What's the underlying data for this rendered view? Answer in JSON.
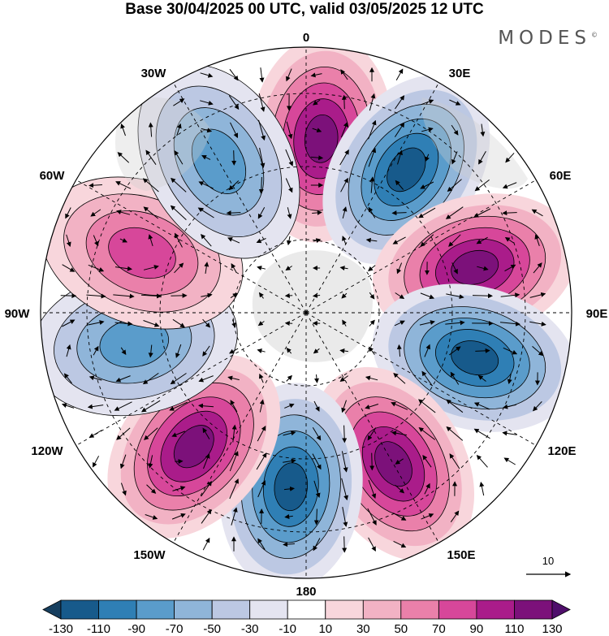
{
  "title": "Base 30/04/2025 00 UTC, valid 03/05/2025 12 UTC",
  "brand": "MODES",
  "brand_mark": "©",
  "longitude_labels": {
    "lon_0": "0",
    "lon_30E": "30E",
    "lon_60E": "60E",
    "lon_90E": "90E",
    "lon_120E": "120E",
    "lon_150E": "150E",
    "lon_180": "180",
    "lon_150W": "150W",
    "lon_120W": "120W",
    "lon_90W": "90W",
    "lon_60W": "60W",
    "lon_30W": "30W"
  },
  "vector_reference": {
    "value": "10"
  },
  "colorbar": {
    "levels": [
      -130,
      -110,
      -90,
      -70,
      -50,
      -30,
      -10,
      10,
      30,
      50,
      70,
      90,
      110,
      130
    ],
    "labels": [
      "-130",
      "-110",
      "-90",
      "-70",
      "-50",
      "-30",
      "-10",
      "10",
      "30",
      "50",
      "70",
      "90",
      "110",
      "130"
    ],
    "colors": [
      "#173f5f",
      "#175a8b",
      "#2f7fb5",
      "#5a9ccb",
      "#8fb5d9",
      "#bcc8e3",
      "#e4e4f0",
      "#ffffff",
      "#f8d6dc",
      "#f2b2c4",
      "#ea80aa",
      "#d7479a",
      "#aa1c8a",
      "#7c117a",
      "#4f0e6b"
    ]
  },
  "chart_data": {
    "type": "heatmap",
    "projection": "north-polar-stereographic",
    "center": "North Pole",
    "fields": [
      "shaded anomaly",
      "wind vectors"
    ],
    "anomaly_centers": [
      {
        "longitude": "5E",
        "sign": "positive",
        "peak": 130
      },
      {
        "longitude": "35E",
        "sign": "negative",
        "peak": -130
      },
      {
        "longitude": "75E",
        "sign": "positive",
        "peak": 130
      },
      {
        "longitude": "105E",
        "sign": "negative",
        "peak": -130
      },
      {
        "longitude": "150E",
        "sign": "positive",
        "peak": 130
      },
      {
        "longitude": "175W",
        "sign": "negative",
        "peak": -130
      },
      {
        "longitude": "140W",
        "sign": "positive",
        "peak": 130
      },
      {
        "longitude": "100W",
        "sign": "negative",
        "peak": -90
      },
      {
        "longitude": "70W",
        "sign": "positive",
        "peak": 90
      },
      {
        "longitude": "30W",
        "sign": "negative",
        "peak": -90
      }
    ]
  }
}
